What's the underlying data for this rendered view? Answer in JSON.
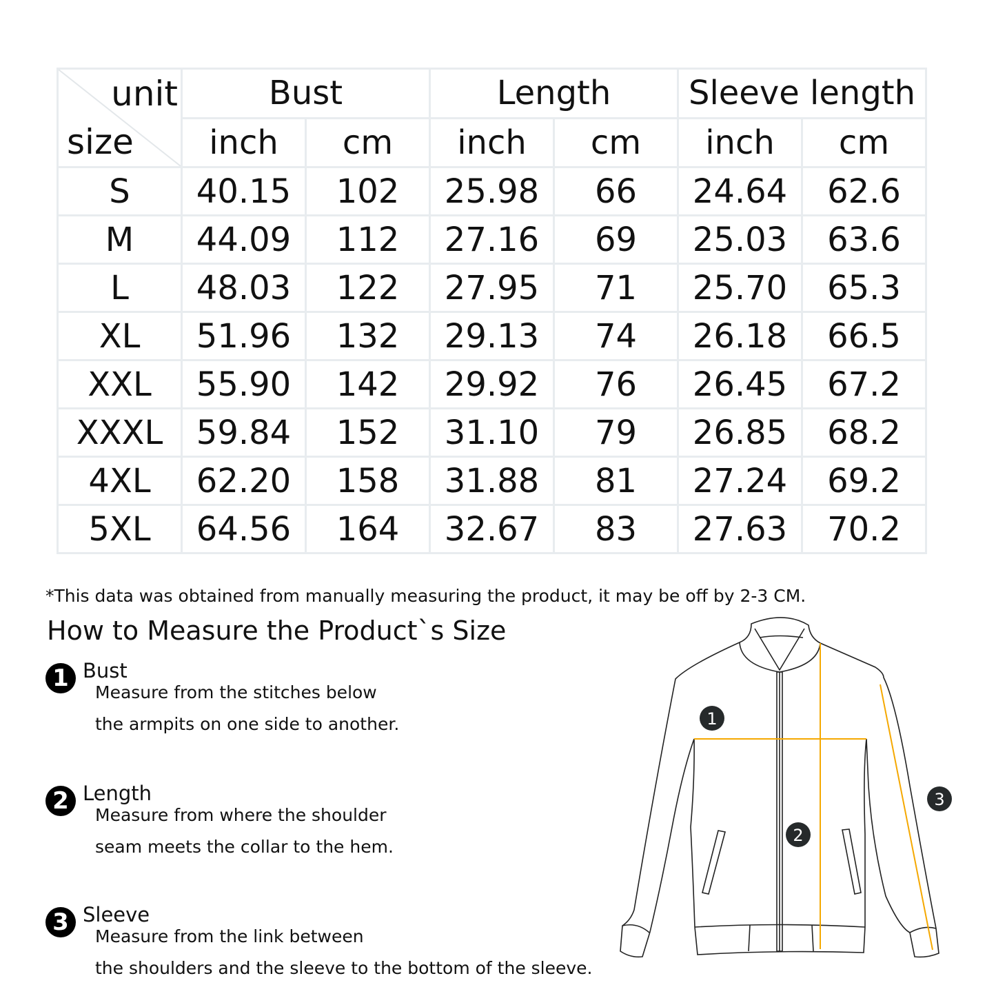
{
  "table": {
    "corner": {
      "unit": "unit",
      "size": "size"
    },
    "groups": [
      "Bust",
      "Length",
      "Sleeve length"
    ],
    "units": [
      "inch",
      "cm",
      "inch",
      "cm",
      "inch",
      "cm"
    ],
    "rows": [
      [
        "S",
        "40.15",
        "102",
        "25.98",
        "66",
        "24.64",
        "62.6"
      ],
      [
        "M",
        "44.09",
        "112",
        "27.16",
        "69",
        "25.03",
        "63.6"
      ],
      [
        "L",
        "48.03",
        "122",
        "27.95",
        "71",
        "25.70",
        "65.3"
      ],
      [
        "XL",
        "51.96",
        "132",
        "29.13",
        "74",
        "26.18",
        "66.5"
      ],
      [
        "XXL",
        "55.90",
        "142",
        "29.92",
        "76",
        "26.45",
        "67.2"
      ],
      [
        "XXXL",
        "59.84",
        "152",
        "31.10",
        "79",
        "26.85",
        "68.2"
      ],
      [
        "4XL",
        "62.20",
        "158",
        "31.88",
        "81",
        "27.24",
        "69.2"
      ],
      [
        "5XL",
        "64.56",
        "164",
        "32.67",
        "83",
        "27.63",
        "70.2"
      ]
    ]
  },
  "note": "*This data was obtained from manually measuring the product, it may be off by 2-3 CM.",
  "guide": {
    "title": "How to Measure the Product`s Size",
    "steps": [
      {
        "num": "1",
        "heading": "Bust",
        "lines": [
          "Measure from the stitches below",
          "the armpits on one side to another."
        ]
      },
      {
        "num": "2",
        "heading": "Length",
        "lines": [
          "Measure from where the shoulder",
          "seam meets the collar to the hem."
        ]
      },
      {
        "num": "3",
        "heading": "Sleeve",
        "lines": [
          "Measure from the link between",
          "the shoulders and the sleeve to the bottom of the sleeve."
        ]
      }
    ]
  },
  "diagram": {
    "labels": [
      "1",
      "2",
      "3"
    ],
    "measure_color": "#f5a800",
    "line_color": "#222222"
  }
}
